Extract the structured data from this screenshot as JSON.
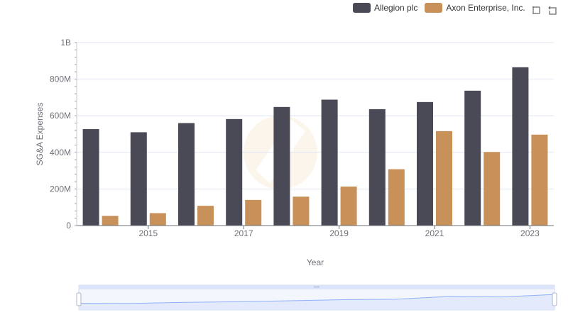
{
  "chart_data": {
    "type": "bar",
    "title": "",
    "xlabel": "Year",
    "ylabel": "SG&A Expenses",
    "categories": [
      "2014",
      "2015",
      "2016",
      "2017",
      "2018",
      "2019",
      "2020",
      "2021",
      "2022",
      "2023"
    ],
    "x_tick_labels": [
      "2015",
      "2017",
      "2019",
      "2021",
      "2023"
    ],
    "y_tick_labels": [
      "0",
      "200M",
      "400M",
      "600M",
      "800M",
      "1B"
    ],
    "ylim": [
      0,
      1000000000
    ],
    "grid": true,
    "legend_position": "top-right",
    "series": [
      {
        "name": "Allegion plc",
        "color": "#4a4a56",
        "values": [
          527000000,
          510000000,
          560000000,
          582000000,
          648000000,
          688000000,
          636000000,
          675000000,
          737000000,
          865000000
        ]
      },
      {
        "name": "Axon Enterprise, Inc.",
        "color": "#c8915a",
        "values": [
          53000000,
          68000000,
          108000000,
          140000000,
          158000000,
          213000000,
          308000000,
          516000000,
          402000000,
          497000000
        ]
      }
    ]
  },
  "toolbox": {
    "zoom_icon": "zoom-icon",
    "restore_icon": "restore-icon"
  },
  "colors": {
    "grid": "#e0e6f1",
    "slider_fill": "#dfe7fb",
    "slider_border": "#d2dbee",
    "slider_line": "#8fb0f7"
  }
}
